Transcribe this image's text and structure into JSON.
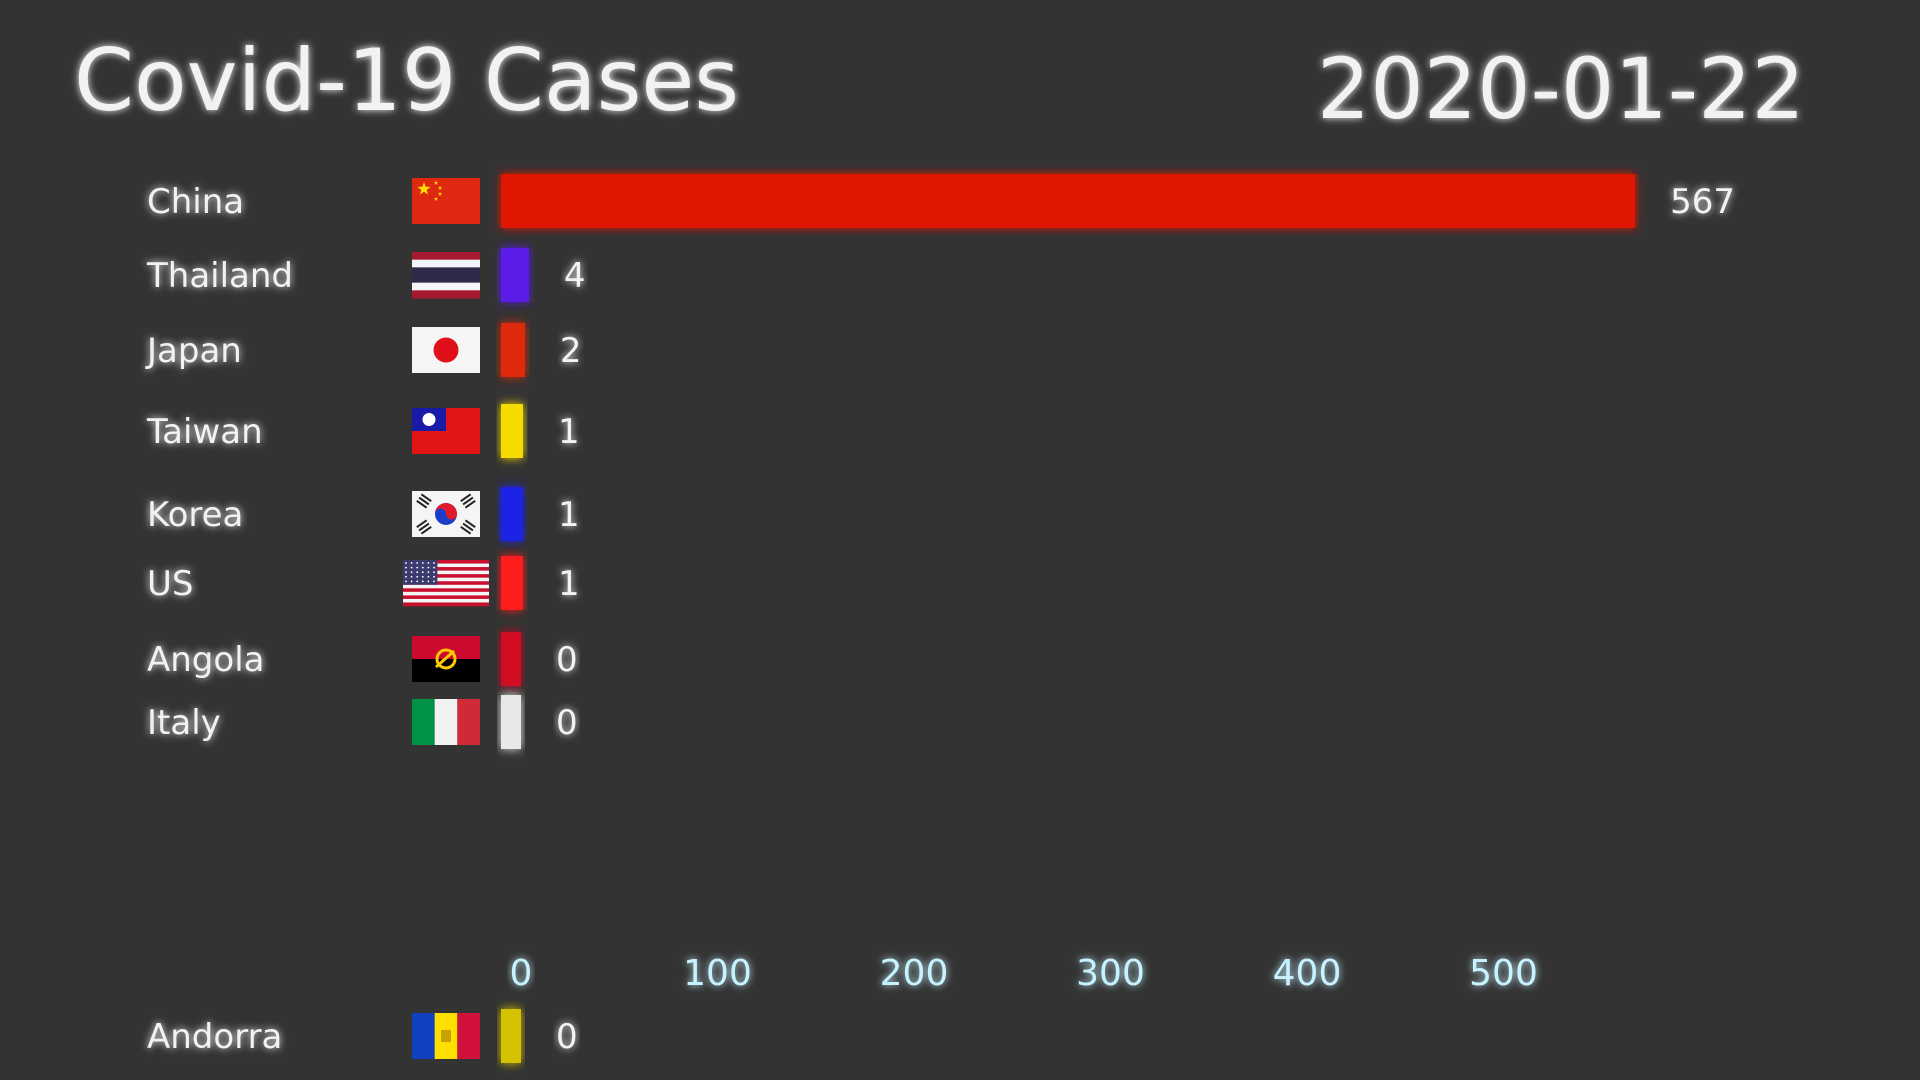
{
  "chart_data": {
    "type": "bar",
    "orientation": "horizontal",
    "title": "Covid-19 Cases",
    "date": "2020-01-22",
    "categories": [
      "China",
      "Thailand",
      "Japan",
      "Taiwan",
      "Korea",
      "US",
      "Angola",
      "Italy",
      "Andorra"
    ],
    "values": [
      567,
      4,
      2,
      1,
      1,
      1,
      0,
      0,
      0
    ],
    "value_labels": [
      "567",
      "4",
      "2",
      "1",
      "1",
      "1",
      "0",
      "0",
      "0"
    ],
    "bar_colors": [
      "#e01400",
      "#5a1ee6",
      "#e02a10",
      "#f4dc00",
      "#1a22e6",
      "#ff1a1a",
      "#d01020",
      "#e8e8e8",
      "#d4c200"
    ],
    "flags": [
      "china-flag",
      "thailand-flag",
      "japan-flag",
      "taiwan-flag",
      "korea-flag",
      "us-flag",
      "angola-flag",
      "italy-flag",
      "andorra-flag"
    ],
    "xticks": [
      0,
      100,
      200,
      300,
      400,
      500
    ],
    "xtick_labels": [
      "0",
      "100",
      "200",
      "300",
      "400",
      "500"
    ],
    "xlim": [
      0,
      580
    ],
    "grid": true,
    "colors": {
      "background": "#333333",
      "gridline": "#bfefff",
      "text": "#f2f2f2"
    }
  }
}
